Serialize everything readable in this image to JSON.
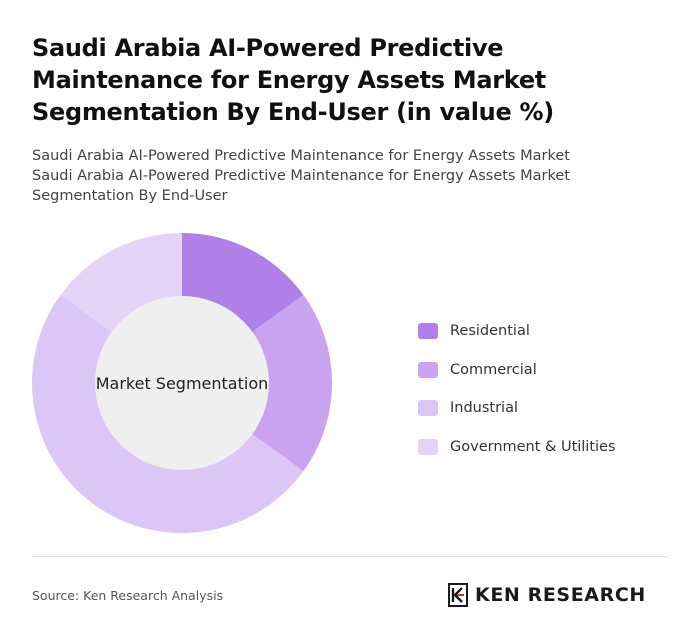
{
  "title": "Saudi Arabia AI-Powered Predictive Maintenance for Energy Assets Market Segmentation By End-User (in value %)",
  "subtitle_line1": "Saudi Arabia AI-Powered Predictive Maintenance for Energy Assets Market",
  "subtitle_line2": "Saudi Arabia AI-Powered Predictive Maintenance for Energy Assets Market Segmentation By End-User",
  "chart_data": {
    "type": "pie",
    "variant": "donut",
    "center_label": "Market Segmentation",
    "categories": [
      "Residential",
      "Commercial",
      "Industrial",
      "Government & Utilities"
    ],
    "values": [
      15,
      20,
      50,
      15
    ],
    "colors": [
      "#b07fe8",
      "#c9a3ef",
      "#dcc6f5",
      "#e3d3f6"
    ],
    "center_fill": "#f0eff0",
    "legend_position": "right"
  },
  "legend": [
    {
      "label": "Residential",
      "color": "#b07fe8"
    },
    {
      "label": "Commercial",
      "color": "#c9a3ef"
    },
    {
      "label": "Industrial",
      "color": "#dcc6f5"
    },
    {
      "label": "Government & Utilities",
      "color": "#e3d3f6"
    }
  ],
  "source": "Source: Ken Research Analysis",
  "logo": {
    "text": "KEN RESEARCH",
    "brand_color": "#1a1a1a"
  }
}
